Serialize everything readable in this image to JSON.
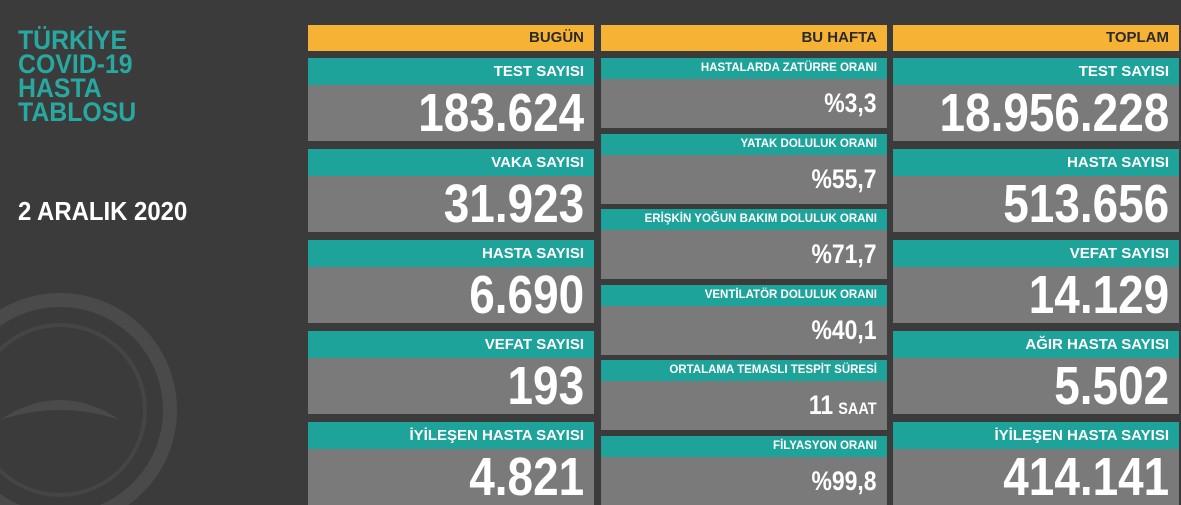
{
  "header": {
    "title_lines": [
      "TÜRKİYE",
      "COVID-19",
      "HASTA",
      "TABLOSU"
    ],
    "date": "2 ARALIK 2020"
  },
  "columns": [
    {
      "heading": "BUGÜN",
      "items": [
        {
          "label": "TEST SAYISI",
          "value": "183.624"
        },
        {
          "label": "VAKA SAYISI",
          "value": "31.923"
        },
        {
          "label": "HASTA SAYISI",
          "value": "6.690"
        },
        {
          "label": "VEFAT SAYISI",
          "value": "193"
        },
        {
          "label": "İYİLEŞEN HASTA SAYISI",
          "value": "4.821"
        }
      ]
    },
    {
      "heading": "BU HAFTA",
      "items": [
        {
          "label": "HASTALARDA ZATÜRRE ORANI",
          "value": "%3,3"
        },
        {
          "label": "YATAK DOLULUK ORANI",
          "value": "%55,7"
        },
        {
          "label": "ERİŞKİN YOĞUN BAKIM DOLULUK ORANI",
          "value": "%71,7"
        },
        {
          "label": "VENTİLATÖR DOLULUK ORANI",
          "value": "%40,1"
        },
        {
          "label": "ORTALAMA TEMASLI TESPİT SÜRESİ",
          "value": "11",
          "unit": "SAAT"
        },
        {
          "label": "FİLYASYON ORANI",
          "value": "%99,8"
        }
      ]
    },
    {
      "heading": "TOPLAM",
      "items": [
        {
          "label": "TEST SAYISI",
          "value": "18.956.228"
        },
        {
          "label": "HASTA SAYISI",
          "value": "513.656"
        },
        {
          "label": "VEFAT SAYISI",
          "value": "14.129"
        },
        {
          "label": "AĞIR HASTA SAYISI",
          "value": "5.502"
        },
        {
          "label": "İYİLEŞEN HASTA SAYISI",
          "value": "414.141"
        }
      ]
    }
  ]
}
